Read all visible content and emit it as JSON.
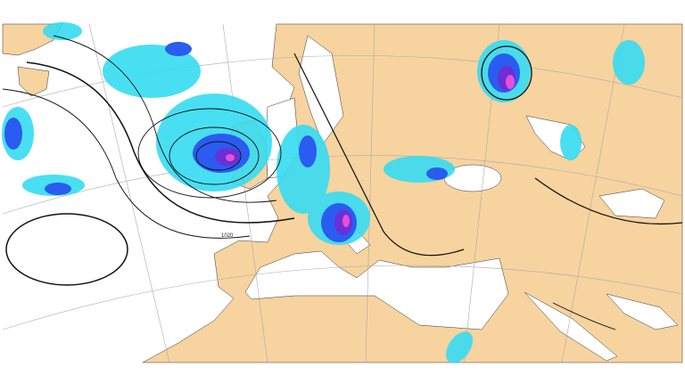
{
  "map": {
    "isobar_labels": [
      "1020"
    ]
  }
}
